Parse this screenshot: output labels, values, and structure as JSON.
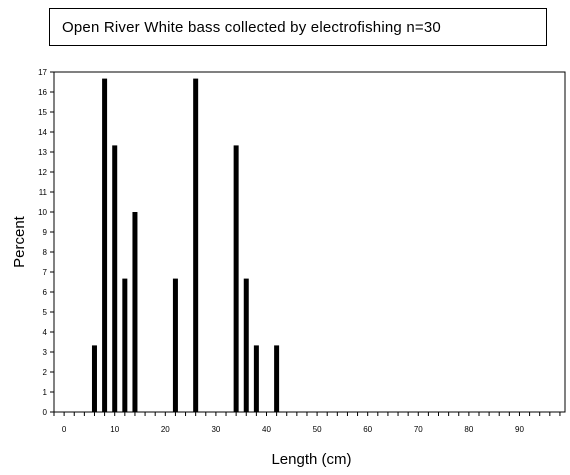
{
  "chart_data": {
    "type": "bar",
    "title": "Open River White bass collected by electrofishing n=30",
    "xlabel": "Length (cm)",
    "ylabel": "Percent",
    "xlim": [
      -2,
      99
    ],
    "ylim": [
      0,
      17
    ],
    "x_tick_labels": [
      "0",
      "10",
      "20",
      "30",
      "40",
      "50",
      "60",
      "70",
      "80",
      "90"
    ],
    "y_tick_labels": [
      "0",
      "1",
      "2",
      "3",
      "4",
      "5",
      "6",
      "7",
      "8",
      "9",
      "10",
      "11",
      "12",
      "13",
      "14",
      "15",
      "16",
      "17"
    ],
    "x": [
      6,
      8,
      10,
      12,
      14,
      22,
      26,
      34,
      36,
      38,
      42
    ],
    "values": [
      3.33,
      16.67,
      13.33,
      6.67,
      10.0,
      6.67,
      16.67,
      13.33,
      6.67,
      3.33,
      3.33
    ],
    "bar_color": "#000000",
    "grid": false,
    "legend": "none"
  }
}
